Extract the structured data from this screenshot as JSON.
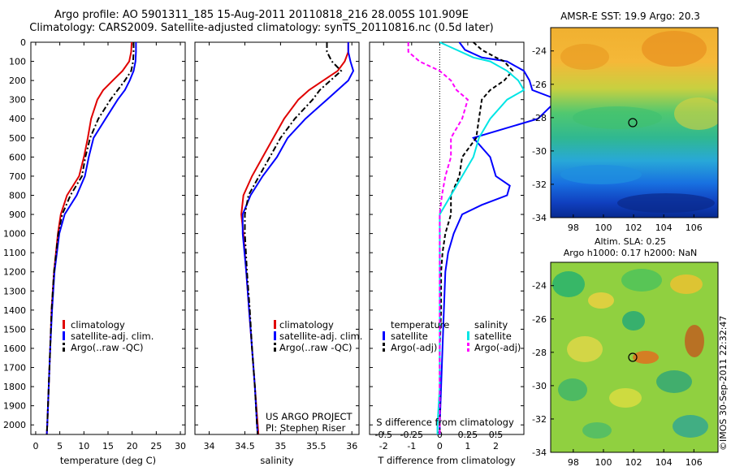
{
  "header": {
    "line1": "Argo profile: AO 5901311_185 15-Aug-2011 20110818_216 28.005S 101.909E",
    "line2": "Climatology: CARS2009. Satellite-adjusted climatology: synTS_20110816.nc (0.5d later)"
  },
  "colors": {
    "climatology": "#e00000",
    "satellite": "#0000ff",
    "argo": "#000000",
    "cyan": "#00e5e5",
    "magenta": "#ff00ff"
  },
  "depth_ticks": [
    "0",
    "100",
    "200",
    "300",
    "400",
    "500",
    "600",
    "700",
    "800",
    "900",
    "1000",
    "1100",
    "1200",
    "1300",
    "1400",
    "1500",
    "1600",
    "1700",
    "1800",
    "1900",
    "2000"
  ],
  "annotations": {
    "project": "US ARGO PROJECT",
    "pi": "PI: Stephen Riser",
    "sst_title": "AMSR-E SST: 19.9 Argo: 20.3",
    "sla_title1": "Altim. SLA: 0.25",
    "sla_title2": "Argo h1000: 0.17 h2000: NaN",
    "watermark": "©IMOS 30-Sep-2011 22:32:47"
  },
  "chart_data": [
    {
      "type": "line",
      "panel": "temperature",
      "xlabel": "temperature (deg C)",
      "ylabel": "",
      "xlim": [
        -1,
        31
      ],
      "ylim": [
        2050,
        0
      ],
      "xticks": [
        "0",
        "5",
        "10",
        "15",
        "20",
        "25",
        "30"
      ],
      "y_reversed": true,
      "legend": [
        "climatology",
        "satellite-adj. clim.",
        "Argo(..raw -QC)"
      ],
      "legend_position": "lower-middle",
      "series": [
        {
          "name": "climatology",
          "color": "#e00000",
          "style": "solid",
          "depth": [
            0,
            50,
            100,
            150,
            200,
            250,
            300,
            400,
            500,
            600,
            700,
            800,
            900,
            1000,
            1200,
            1400,
            1600,
            1800,
            2000,
            2050
          ],
          "values": [
            19.9,
            19.8,
            19.4,
            18.0,
            16.0,
            14.0,
            12.8,
            11.5,
            10.8,
            10.0,
            9.0,
            6.5,
            5.2,
            4.6,
            3.8,
            3.3,
            3.0,
            2.7,
            2.4,
            2.3
          ]
        },
        {
          "name": "satellite-adj. clim.",
          "color": "#0000ff",
          "style": "solid",
          "depth": [
            0,
            50,
            100,
            150,
            200,
            250,
            300,
            400,
            500,
            600,
            700,
            800,
            900,
            1000,
            1200,
            1400,
            1600,
            1800,
            2000,
            2050
          ],
          "values": [
            20.8,
            20.8,
            20.7,
            20.3,
            19.5,
            18.5,
            17.0,
            14.5,
            12.0,
            11.0,
            10.2,
            8.5,
            6.0,
            4.9,
            3.9,
            3.4,
            3.0,
            2.7,
            2.4,
            2.3
          ]
        },
        {
          "name": "Argo(..raw -QC)",
          "color": "#000000",
          "style": "dashdot",
          "depth": [
            0,
            50,
            100,
            150,
            200,
            250,
            300,
            400,
            500,
            600,
            700,
            800,
            900,
            1000,
            1200,
            1400,
            1600,
            1800,
            2000,
            2050
          ],
          "values": [
            20.3,
            20.3,
            20.2,
            19.8,
            18.5,
            17.0,
            15.5,
            13.0,
            11.3,
            10.3,
            9.6,
            7.2,
            5.5,
            4.7,
            3.8,
            3.3,
            3.0,
            2.7,
            2.4,
            2.3
          ]
        }
      ]
    },
    {
      "type": "line",
      "panel": "salinity",
      "xlabel": "salinity",
      "ylabel": "",
      "xlim": [
        33.8,
        36.1
      ],
      "ylim": [
        2050,
        0
      ],
      "xticks": [
        "34",
        "34.5",
        "35",
        "35.5",
        "36"
      ],
      "y_reversed": true,
      "legend": [
        "climatology",
        "satellite-adj. clim.",
        "Argo(..raw -QC)"
      ],
      "legend_position": "lower-right",
      "series": [
        {
          "name": "climatology",
          "color": "#e00000",
          "style": "solid",
          "depth": [
            0,
            50,
            100,
            150,
            200,
            250,
            300,
            400,
            500,
            600,
            700,
            800,
            900,
            1000,
            1200,
            1400,
            1600,
            1800,
            2000,
            2050
          ],
          "values": [
            35.95,
            35.95,
            35.9,
            35.8,
            35.6,
            35.4,
            35.25,
            35.05,
            34.9,
            34.75,
            34.6,
            34.48,
            34.45,
            34.48,
            34.52,
            34.56,
            34.6,
            34.64,
            34.68,
            34.69
          ]
        },
        {
          "name": "satellite-adj. clim.",
          "color": "#0000ff",
          "style": "solid",
          "depth": [
            0,
            50,
            100,
            150,
            200,
            250,
            300,
            400,
            500,
            600,
            700,
            800,
            900,
            1000,
            1200,
            1400,
            1600,
            1800,
            2000,
            2050
          ],
          "values": [
            35.95,
            35.95,
            35.98,
            36.02,
            35.95,
            35.8,
            35.65,
            35.35,
            35.1,
            34.95,
            34.75,
            34.58,
            34.47,
            34.47,
            34.52,
            34.56,
            34.6,
            34.64,
            34.67,
            34.68
          ]
        },
        {
          "name": "Argo(..raw -QC)",
          "color": "#000000",
          "style": "dashdot",
          "depth": [
            0,
            50,
            100,
            150,
            200,
            250,
            300,
            400,
            500,
            600,
            700,
            800,
            900,
            1000,
            1200,
            1400,
            1600,
            1800,
            2000,
            2050
          ],
          "values": [
            35.65,
            35.65,
            35.72,
            35.85,
            35.7,
            35.55,
            35.45,
            35.2,
            35.0,
            34.85,
            34.7,
            34.55,
            34.5,
            34.5,
            34.53,
            34.57,
            34.6,
            34.64,
            34.67,
            34.68
          ]
        }
      ]
    },
    {
      "type": "line",
      "panel": "difference",
      "xlabel": "T difference from climatology",
      "top_label": "S difference from climatology",
      "xlim": [
        -2.5,
        3.0
      ],
      "x2lim": [
        -0.625,
        0.75
      ],
      "ylim": [
        2050,
        0
      ],
      "xticks": [
        "-2",
        "-1",
        "0",
        "1",
        "2"
      ],
      "x2ticks": [
        "-0.5",
        "-0.25",
        "0",
        "0.25",
        "0.5"
      ],
      "y_reversed": true,
      "zero_line": "dotted",
      "legend_groups": [
        {
          "title": "temperature",
          "entries": [
            "satellite",
            "Argo(-adj)"
          ]
        },
        {
          "title": "salinity",
          "entries": [
            "satellite",
            "Argo(-adj)"
          ]
        }
      ],
      "legend_position": "lower-middle",
      "series": [
        {
          "name": "satellite",
          "group": "temperature",
          "color": "#0000ff",
          "style": "solid",
          "depth": [
            0,
            40,
            80,
            100,
            150,
            200,
            250,
            300,
            400,
            500,
            600,
            700,
            750,
            800,
            850,
            900,
            1000,
            1100,
            1200,
            1400,
            1600,
            1800,
            2000,
            2050
          ],
          "values": [
            0.7,
            0.9,
            1.5,
            2.4,
            3.0,
            3.2,
            3.3,
            4.2,
            3.5,
            1.2,
            1.8,
            2.0,
            2.5,
            2.4,
            1.5,
            0.8,
            0.5,
            0.3,
            0.2,
            0.15,
            0.1,
            0.05,
            0.0,
            0.0
          ]
        },
        {
          "name": "Argo(-adj)",
          "group": "temperature",
          "color": "#000000",
          "style": "dashed",
          "depth": [
            0,
            40,
            80,
            100,
            150,
            200,
            250,
            300,
            400,
            500,
            600,
            700,
            800,
            900,
            1000,
            1100,
            1200,
            1400,
            1600,
            1800,
            2000,
            2050
          ],
          "values": [
            1.2,
            1.5,
            2.0,
            2.3,
            2.6,
            2.3,
            1.8,
            1.5,
            1.4,
            1.3,
            0.8,
            0.7,
            0.4,
            0.4,
            0.2,
            0.1,
            0.05,
            0.05,
            0.0,
            0.0,
            0.0,
            0.0
          ]
        },
        {
          "name": "satellite",
          "group": "salinity",
          "color": "#00e5e5",
          "style": "solid",
          "depth": [
            0,
            40,
            80,
            100,
            150,
            200,
            250,
            300,
            400,
            500,
            600,
            700,
            800,
            900,
            1000,
            1200,
            1400,
            1600,
            1800,
            2000,
            2050
          ],
          "values": [
            0.0,
            0.15,
            0.3,
            0.45,
            0.6,
            0.7,
            0.75,
            0.6,
            0.45,
            0.35,
            0.3,
            0.2,
            0.1,
            0.0,
            0.0,
            0.0,
            0.0,
            0.0,
            0.0,
            -0.02,
            -0.02
          ]
        },
        {
          "name": "Argo(-adj)",
          "group": "salinity",
          "color": "#ff00ff",
          "style": "dashed",
          "depth": [
            0,
            50,
            100,
            150,
            200,
            250,
            300,
            400,
            500,
            600,
            700,
            800,
            900,
            1000,
            1200,
            1400,
            1600,
            1800,
            2000,
            2050
          ],
          "values": [
            -0.28,
            -0.28,
            -0.18,
            0.0,
            0.1,
            0.15,
            0.25,
            0.2,
            0.1,
            0.1,
            0.05,
            0.02,
            0.0,
            0.0,
            0.0,
            0.0,
            0.0,
            0.0,
            0.0,
            0.0
          ]
        }
      ]
    },
    {
      "type": "heatmap",
      "panel": "sst_map",
      "title": "AMSR-E SST: 19.9 Argo: 20.3",
      "xlim": [
        96.5,
        107.6
      ],
      "ylim": [
        -34,
        -22.6
      ],
      "xticks": [
        "98",
        "100",
        "102",
        "104",
        "106"
      ],
      "yticks": [
        "-24",
        "-26",
        "-28",
        "-30",
        "-32",
        "-34"
      ],
      "colormap": "jet",
      "marker": {
        "lon": 101.909,
        "lat": -28.005
      }
    },
    {
      "type": "heatmap",
      "panel": "sla_map",
      "title": "Altim. SLA: 0.25 / Argo h1000: 0.17 h2000: NaN",
      "xlim": [
        96.5,
        107.6
      ],
      "ylim": [
        -34,
        -22.6
      ],
      "xticks": [
        "98",
        "100",
        "102",
        "104",
        "106"
      ],
      "yticks": [
        "-24",
        "-26",
        "-28",
        "-30",
        "-32",
        "-34"
      ],
      "colormap": "jet",
      "marker": {
        "lon": 101.909,
        "lat": -28.005
      }
    }
  ]
}
